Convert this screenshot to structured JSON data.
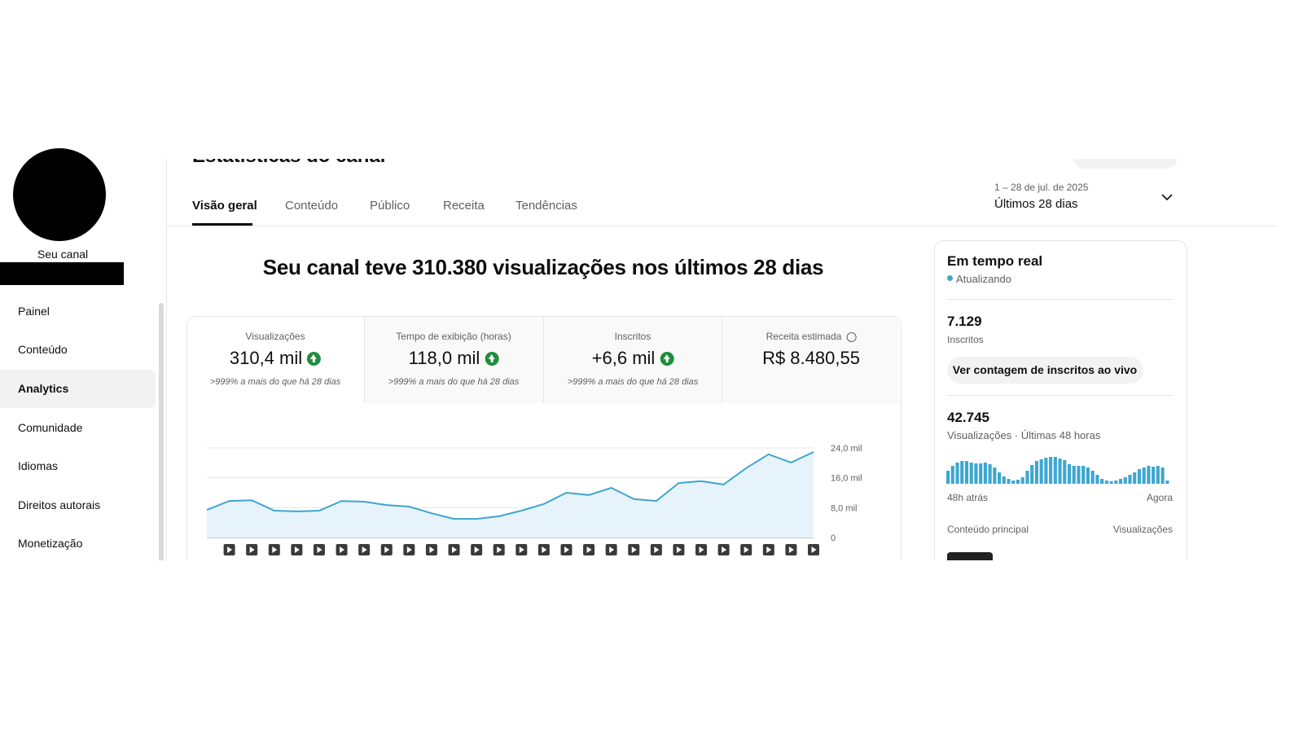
{
  "sidebar": {
    "channel_label": "Seu canal",
    "nav": [
      {
        "label": "Painel",
        "active": false
      },
      {
        "label": "Conteúdo",
        "active": false
      },
      {
        "label": "Analytics",
        "active": true
      },
      {
        "label": "Comunidade",
        "active": false
      },
      {
        "label": "Idiomas",
        "active": false
      },
      {
        "label": "Direitos autorais",
        "active": false
      },
      {
        "label": "Monetização",
        "active": false
      }
    ]
  },
  "header": {
    "title": "Estatísticas do canal",
    "tabs": [
      {
        "label": "Visão geral",
        "active": true
      },
      {
        "label": "Conteúdo",
        "active": false
      },
      {
        "label": "Público",
        "active": false
      },
      {
        "label": "Receita",
        "active": false
      },
      {
        "label": "Tendências",
        "active": false
      }
    ],
    "date_range": "1 – 28 de jul. de 2025",
    "period": "Últimos 28 dias"
  },
  "summary": "Seu canal teve 310.380 visualizações nos últimos 28 dias",
  "cards": [
    {
      "label": "Visualizações",
      "value": "310,4 mil",
      "change": ">999% a mais do que há 28 dias"
    },
    {
      "label": "Tempo de exibição (horas)",
      "value": "118,0 mil",
      "change": ">999% a mais do que há 28 dias"
    },
    {
      "label": "Inscritos",
      "value": "+6,6 mil",
      "change": ">999% a mais do que há 28 dias"
    },
    {
      "label": "Receita estimada",
      "value": "R$ 8.480,55"
    }
  ],
  "chart_data": [
    {
      "type": "line",
      "categories": [
        null,
        null,
        null,
        null,
        null,
        null,
        null,
        null,
        null,
        null,
        null,
        null,
        null,
        null,
        null,
        null,
        null,
        null,
        null,
        null,
        null,
        null,
        null,
        null,
        null,
        null,
        null,
        null
      ],
      "values": [
        7400,
        9800,
        10000,
        7200,
        7000,
        7200,
        9800,
        9600,
        8700,
        8300,
        6500,
        5000,
        5000,
        5700,
        7200,
        9000,
        12000,
        11400,
        13300,
        10300,
        9800,
        14600,
        15100,
        14200,
        18600,
        22300,
        20100,
        22900
      ],
      "color": "#3ea6d0",
      "ylim": [
        0,
        24000
      ],
      "yticks": [
        0,
        {
          "value": 8000,
          "label": "8,0 mil"
        },
        {
          "value": 16000,
          "label": "16,0 mil"
        },
        {
          "value": 24000,
          "label": "24,0 mil"
        }
      ],
      "grid": true
    },
    {
      "type": "bar",
      "values": [
        800,
        1100,
        1300,
        1400,
        1400,
        1300,
        1250,
        1250,
        1300,
        1200,
        1000,
        700,
        450,
        300,
        200,
        250,
        400,
        800,
        1150,
        1400,
        1500,
        1600,
        1650,
        1650,
        1550,
        1450,
        1200,
        1100,
        1100,
        1100,
        1000,
        800,
        550,
        300,
        200,
        150,
        200,
        300,
        400,
        550,
        700,
        900,
        1000,
        1100,
        1050,
        1100,
        1000,
        200
      ],
      "color": "#3ea6d0",
      "x_start_label": "48h atrás",
      "x_end_label": "Agora"
    }
  ],
  "realtime": {
    "title": "Em tempo real",
    "status": "Atualizando",
    "subscribers": "7.129",
    "subscribers_label": "Inscritos",
    "live_button": "Ver contagem de inscritos ao vivo",
    "views": "42.745",
    "views_label": "Visualizações · Últimas 48 horas",
    "top_content": "Conteúdo principal",
    "top_content_metric": "Visualizações"
  }
}
